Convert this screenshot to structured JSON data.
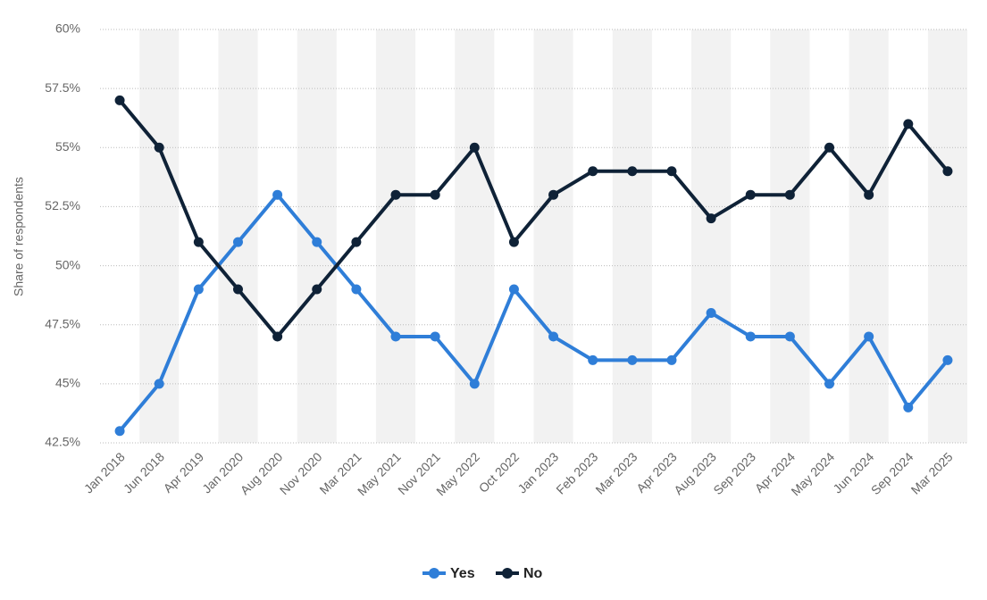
{
  "chart_data": {
    "type": "line",
    "y_label": "Share of respondents",
    "categories": [
      "Jan 2018",
      "Jun 2018",
      "Apr 2019",
      "Jan 2020",
      "Aug 2020",
      "Nov 2020",
      "Mar 2021",
      "May 2021",
      "Nov 2021",
      "May 2022",
      "Oct 2022",
      "Jan 2023",
      "Feb 2023",
      "Mar 2023",
      "Apr 2023",
      "Aug 2023",
      "Sep 2023",
      "Apr 2024",
      "May 2024",
      "Jun 2024",
      "Sep 2024",
      "Mar 2025"
    ],
    "series": [
      {
        "name": "Yes",
        "color": "#2f7ed8",
        "values": [
          43,
          45,
          49,
          51,
          53,
          51,
          49,
          47,
          47,
          45,
          49,
          47,
          46,
          46,
          46,
          48,
          47,
          47,
          45,
          47,
          44,
          46
        ]
      },
      {
        "name": "No",
        "color": "#0f2237",
        "values": [
          57,
          55,
          51,
          49,
          47,
          49,
          51,
          53,
          53,
          55,
          51,
          53,
          54,
          54,
          54,
          52,
          53,
          53,
          55,
          53,
          56,
          54
        ]
      }
    ],
    "ylim": [
      42.5,
      60
    ],
    "yticks": [
      {
        "value": 42.5,
        "label": "42.5%"
      },
      {
        "value": 45,
        "label": "45%"
      },
      {
        "value": 47.5,
        "label": "47.5%"
      },
      {
        "value": 50,
        "label": "50%"
      },
      {
        "value": 52.5,
        "label": "52.5%"
      },
      {
        "value": 55,
        "label": "55%"
      },
      {
        "value": 57.5,
        "label": "57.5%"
      },
      {
        "value": 60,
        "label": "60%"
      }
    ],
    "grid": true
  }
}
